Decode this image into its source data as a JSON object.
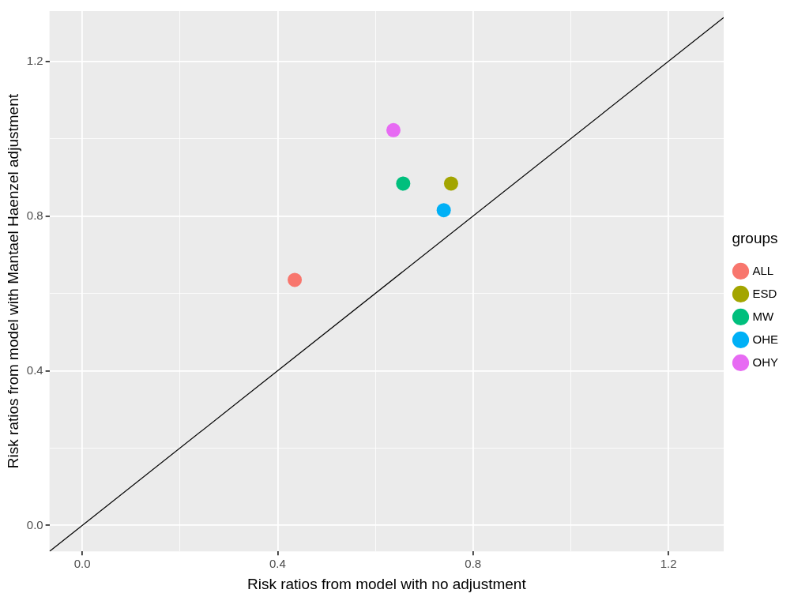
{
  "chart_data": {
    "type": "scatter",
    "xlabel": "Risk ratios from model with no adjustment",
    "ylabel": "Risk ratios from model with Mantael Haenzel adjustment",
    "legend_title": "groups",
    "legend": "right",
    "grid": true,
    "marker": "circle",
    "xlim": [
      -0.067,
      1.313
    ],
    "ylim": [
      -0.067,
      1.33
    ],
    "xticks": [
      {
        "value": 0,
        "label": "0.0"
      },
      {
        "value": 0.2,
        "label": null
      },
      {
        "value": 0.4,
        "label": "0.4"
      },
      {
        "value": 0.6,
        "label": null
      },
      {
        "value": 0.8,
        "label": "0.8"
      },
      {
        "value": 1.0,
        "label": null
      },
      {
        "value": 1.2,
        "label": "1.2"
      }
    ],
    "yticks": [
      {
        "value": 0,
        "label": "0.0"
      },
      {
        "value": 0.2,
        "label": null
      },
      {
        "value": 0.4,
        "label": "0.4"
      },
      {
        "value": 0.6,
        "label": null
      },
      {
        "value": 0.8,
        "label": "0.8"
      },
      {
        "value": 1.0,
        "label": null
      },
      {
        "value": 1.2,
        "label": "1.2"
      }
    ],
    "series": [
      {
        "type": "line",
        "marker": "none",
        "color": "#000000",
        "x": [
          -0.067,
          1.313
        ],
        "values": [
          -0.067,
          1.313
        ]
      },
      {
        "name": "ALL",
        "color": "#f8766d",
        "x": [
          0.435
        ],
        "values": [
          0.635
        ]
      },
      {
        "name": "ESD",
        "color": "#a3a500",
        "x": [
          0.755
        ],
        "values": [
          0.884
        ]
      },
      {
        "name": "MW",
        "color": "#00bf7d",
        "x": [
          0.657
        ],
        "values": [
          0.884
        ]
      },
      {
        "name": "OHE",
        "color": "#00b0f6",
        "x": [
          0.74
        ],
        "values": [
          0.815
        ]
      },
      {
        "name": "OHY",
        "color": "#e76bf3",
        "x": [
          0.637
        ],
        "values": [
          1.022
        ]
      }
    ]
  }
}
